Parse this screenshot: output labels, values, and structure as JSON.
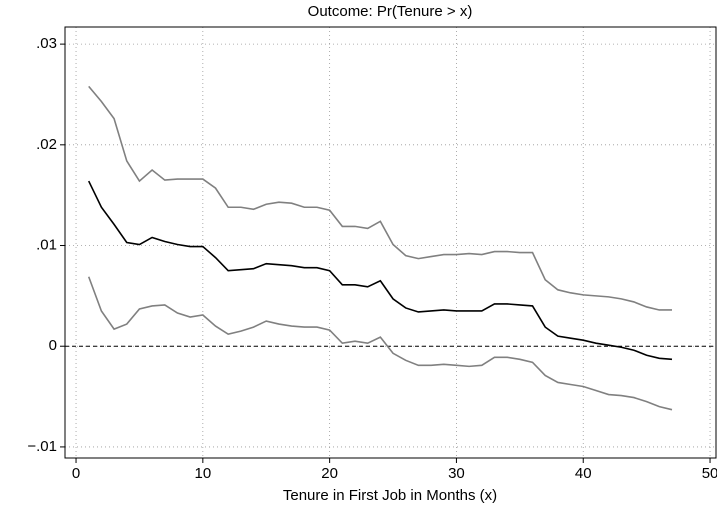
{
  "chart_data": {
    "type": "line",
    "title": "Outcome: Pr(Tenure > x)",
    "x_label": "Tenure in First Job in Months (x)",
    "x": [
      1,
      2,
      3,
      4,
      5,
      6,
      7,
      8,
      9,
      10,
      11,
      12,
      13,
      14,
      15,
      16,
      17,
      18,
      19,
      20,
      21,
      22,
      23,
      24,
      25,
      26,
      27,
      28,
      29,
      30,
      31,
      32,
      33,
      34,
      35,
      36,
      37,
      38,
      39,
      40,
      41,
      42,
      43,
      44,
      45,
      46,
      47
    ],
    "series": [
      {
        "color": "#808080",
        "values": [
          0.0258,
          0.0243,
          0.0226,
          0.0184,
          0.0164,
          0.0175,
          0.0165,
          0.0166,
          0.0166,
          0.0166,
          0.0157,
          0.0138,
          0.0138,
          0.0136,
          0.0141,
          0.0143,
          0.0142,
          0.0138,
          0.0138,
          0.0135,
          0.0119,
          0.0119,
          0.0117,
          0.0124,
          0.0101,
          0.009,
          0.0087,
          0.0089,
          0.0091,
          0.0091,
          0.0092,
          0.0091,
          0.0094,
          0.0094,
          0.0093,
          0.0093,
          0.0066,
          0.0056,
          0.0053,
          0.0051,
          0.005,
          0.0049,
          0.0047,
          0.0044,
          0.0039,
          0.0036,
          0.0036
        ]
      },
      {
        "color": "#000000",
        "values": [
          0.0164,
          0.0138,
          0.0121,
          0.0103,
          0.0101,
          0.0108,
          0.0104,
          0.0101,
          0.0099,
          0.0099,
          0.0088,
          0.0075,
          0.0076,
          0.0077,
          0.0082,
          0.0081,
          0.008,
          0.0078,
          0.0078,
          0.0075,
          0.0061,
          0.0061,
          0.0059,
          0.0065,
          0.0047,
          0.0038,
          0.0034,
          0.0035,
          0.0036,
          0.0035,
          0.0035,
          0.0035,
          0.0042,
          0.0042,
          0.0041,
          0.004,
          0.0019,
          0.001,
          0.0008,
          0.0006,
          0.0003,
          0.0001,
          -0.0001,
          -0.0004,
          -0.0009,
          -0.0012,
          -0.0013
        ]
      },
      {
        "color": "#808080",
        "values": [
          0.0069,
          0.0035,
          0.0017,
          0.0022,
          0.0037,
          0.004,
          0.0041,
          0.0033,
          0.0029,
          0.0031,
          0.002,
          0.0012,
          0.0015,
          0.0019,
          0.0025,
          0.0022,
          0.002,
          0.0019,
          0.0019,
          0.0016,
          0.0003,
          0.0005,
          0.0003,
          0.0009,
          -0.0007,
          -0.0014,
          -0.0019,
          -0.0019,
          -0.0018,
          -0.0019,
          -0.002,
          -0.0019,
          -0.0011,
          -0.0011,
          -0.0013,
          -0.0016,
          -0.0029,
          -0.0036,
          -0.0038,
          -0.004,
          -0.0044,
          -0.0048,
          -0.0049,
          -0.0051,
          -0.0055,
          -0.006,
          -0.0063
        ]
      }
    ],
    "xlim": [
      -0.87,
      50.47
    ],
    "ylim": [
      -0.0111,
      0.0317
    ],
    "xticks": [
      0,
      10,
      20,
      30,
      40,
      50
    ],
    "yticks": [
      {
        "value": 0.03,
        "label": ".03"
      },
      {
        "value": 0.02,
        "label": ".02"
      },
      {
        "value": 0.01,
        "label": ".01"
      },
      0,
      {
        "value": -0.01,
        "label": "−.01"
      }
    ],
    "reference_line": 0,
    "grid": true
  }
}
